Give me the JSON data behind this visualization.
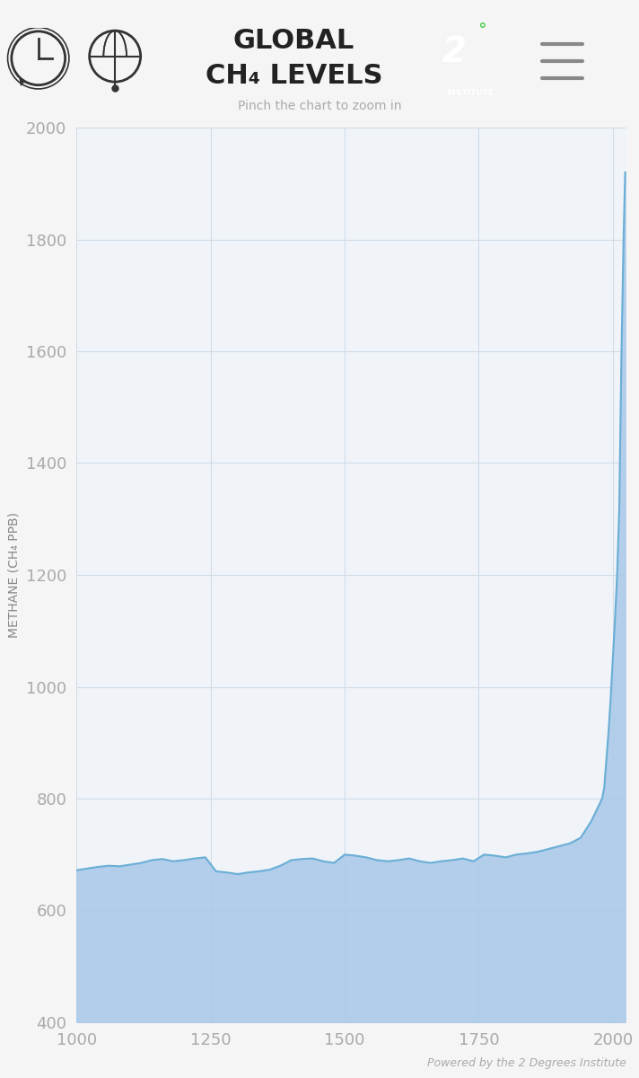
{
  "title_line1": "GLOBAL",
  "title_line2": "CH₄ LEVELS",
  "subtitle": "Pinch the chart to zoom in",
  "ylabel": "METHANE (CH₄ PPB)",
  "footer": "Powered by the 2 Degrees Institute",
  "xlim": [
    1000,
    2025
  ],
  "ylim": [
    400,
    2000
  ],
  "yticks": [
    400,
    600,
    800,
    1000,
    1200,
    1400,
    1600,
    1800,
    2000
  ],
  "xticks": [
    1000,
    1250,
    1500,
    1750,
    2000
  ],
  "fill_color": "#a8c8e8",
  "line_color": "#6aaed6",
  "bg_color": "#f0f4f8",
  "grid_color": "#d0dce8",
  "header_bg": "#f5f5f5",
  "x_data": [
    1000,
    1020,
    1040,
    1060,
    1080,
    1100,
    1120,
    1140,
    1160,
    1180,
    1200,
    1220,
    1240,
    1260,
    1280,
    1300,
    1320,
    1340,
    1360,
    1380,
    1400,
    1420,
    1440,
    1460,
    1480,
    1500,
    1520,
    1540,
    1560,
    1580,
    1600,
    1620,
    1640,
    1660,
    1680,
    1700,
    1720,
    1740,
    1760,
    1780,
    1800,
    1820,
    1840,
    1860,
    1880,
    1900,
    1920,
    1940,
    1960,
    1980,
    1984,
    1988,
    1992,
    1996,
    2000,
    2004,
    2008,
    2012,
    2016,
    2020,
    2023
  ],
  "y_data": [
    672,
    675,
    678,
    680,
    679,
    682,
    685,
    690,
    692,
    688,
    690,
    693,
    695,
    670,
    668,
    665,
    668,
    670,
    673,
    680,
    690,
    692,
    693,
    688,
    685,
    700,
    698,
    695,
    690,
    688,
    690,
    693,
    688,
    685,
    688,
    690,
    693,
    688,
    700,
    698,
    695,
    700,
    702,
    705,
    710,
    715,
    720,
    730,
    760,
    800,
    820,
    870,
    920,
    980,
    1050,
    1120,
    1200,
    1320,
    1590,
    1800,
    1920
  ]
}
